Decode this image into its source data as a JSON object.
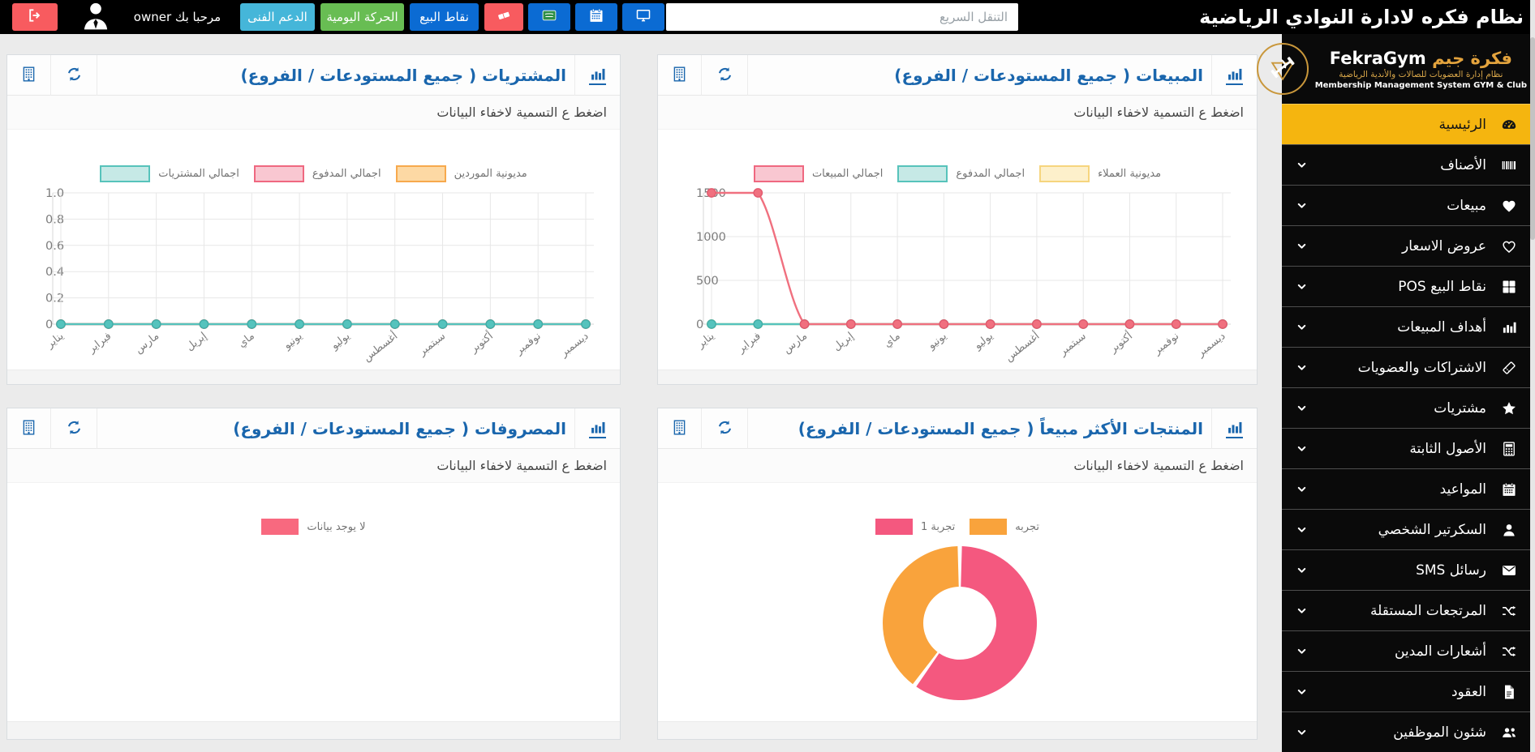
{
  "colors": {
    "topbar_bg": "#000000",
    "sidebar_bg": "#0a0a0a",
    "active_yellow": "#f5b50f",
    "brand_gold": "#e3a33d",
    "title_blue": "#1a66ad",
    "btn_blue": "#0b6bd3",
    "btn_green": "#68bd53",
    "btn_lightblue": "#45b6d9",
    "btn_red": "#f85b5f",
    "line_pink": "#f0707f",
    "line_teal": "#55c3bd",
    "donut_pink": "#f4587f",
    "donut_orange": "#f9a33c",
    "no_data_pink": "#f8697f"
  },
  "topbar": {
    "app_title": "نظام فكره لادارة النوادي الرياضية",
    "search_placeholder": "التنقل السريع",
    "welcome": "مرحبا بك owner",
    "support_label": "الدعم الفنى",
    "daily_label": "الحركة اليومية",
    "pos_label": "نقاط البيع"
  },
  "sidebar": {
    "brand_ar": "فكرة جيم",
    "brand_en": "FekraGym",
    "brand_sub_ar": "نظام إدارة العضويات للصالات والأندية الرياضية",
    "brand_sub_en": "Membership Management System GYM & Club",
    "items": [
      {
        "label": "الرئيسية",
        "icon": "dashboard",
        "active": true
      },
      {
        "label": "الأصناف",
        "icon": "barcode"
      },
      {
        "label": "مبيعات",
        "icon": "heart"
      },
      {
        "label": "عروض الاسعار",
        "icon": "heart-o"
      },
      {
        "label": "نقاط البيع POS",
        "icon": "grid"
      },
      {
        "label": "أهداف المبيعات",
        "icon": "barchart"
      },
      {
        "label": "الاشتراكات والعضويات",
        "icon": "ticket"
      },
      {
        "label": "مشتريات",
        "icon": "star"
      },
      {
        "label": "الأصول الثابتة",
        "icon": "calculator"
      },
      {
        "label": "المواعيد",
        "icon": "calendar"
      },
      {
        "label": "السكرتير الشخصي",
        "icon": "user"
      },
      {
        "label": "رسائل SMS",
        "icon": "envelope"
      },
      {
        "label": "المرتجعات المستقلة",
        "icon": "shuffle"
      },
      {
        "label": "أشعارات المدين",
        "icon": "shuffle"
      },
      {
        "label": "العقود",
        "icon": "file"
      },
      {
        "label": "شئون الموظفين",
        "icon": "users"
      }
    ]
  },
  "panels": [
    {
      "title": "المشتريات ( جميع المستودعات / الفروع)",
      "subtitle": "اضغط ع التسمية لاخفاء البيانات",
      "chart": 1
    },
    {
      "title": "المبيعات ( جميع المستودعات / الفروع)",
      "subtitle": "اضغط ع التسمية لاخفاء البيانات",
      "chart": 0
    },
    {
      "title": "المصروفات ( جميع المستودعات / الفروع)",
      "subtitle": "اضغط ع التسمية لاخفاء البيانات",
      "chart": 2
    },
    {
      "title": "المنتجات الأكثر مبيعاً ( جميع المستودعات / الفروع)",
      "subtitle": "اضغط ع التسمية لاخفاء البيانات",
      "chart": 3
    }
  ],
  "chart_data": [
    {
      "type": "line",
      "title": "المبيعات ( جميع المستودعات / الفروع)",
      "categories": [
        "يناير",
        "فبراير",
        "مارس",
        "إبريل",
        "ماي",
        "يونيو",
        "يوليو",
        "أغسطس",
        "سبتمبر",
        "أكتوبر",
        "نوفمبر",
        "ديسمبر"
      ],
      "ylim": [
        0,
        1500
      ],
      "ytick_labels": [
        "0",
        "500",
        "1000",
        "1500"
      ],
      "grid": true,
      "legend_position": "top",
      "series": [
        {
          "name": "مديونية العملاء",
          "values": [
            0,
            0,
            0,
            0,
            0,
            0,
            0,
            0,
            0,
            0,
            0,
            0
          ],
          "line": "#f6d57e",
          "dot": "#f6d57e",
          "dot_stroke": "#edc45f"
        },
        {
          "name": "اجمالي المدفوع",
          "values": [
            0,
            0,
            0,
            0,
            0,
            0,
            0,
            0,
            0,
            0,
            0,
            0
          ],
          "line": "#55c3bd",
          "dot": "#55c3bd",
          "dot_stroke": "#41aea8"
        },
        {
          "name": "اجمالي المبيعات",
          "values": [
            1500,
            1500,
            0,
            0,
            0,
            0,
            0,
            0,
            0,
            0,
            0,
            0
          ],
          "line": "#f0707f",
          "dot": "#f0707f",
          "dot_stroke": "#e25a6e"
        }
      ],
      "legend": [
        {
          "label": "اجمالي المبيعات",
          "fill": "#f9c7d1",
          "border": "#ef6880"
        },
        {
          "label": "اجمالي المدفوع",
          "fill": "#c6e9e6",
          "border": "#57c3bb"
        },
        {
          "label": "مديونية العملاء",
          "fill": "#fdf0cb",
          "border": "#f6d57e"
        }
      ]
    },
    {
      "type": "line",
      "title": "المشتريات ( جميع المستودعات / الفروع)",
      "categories": [
        "يناير",
        "فبراير",
        "مارس",
        "إبريل",
        "ماي",
        "يونيو",
        "يوليو",
        "أغسطس",
        "سبتمبر",
        "أكتوبر",
        "نوفمبر",
        "ديسمبر"
      ],
      "ylim": [
        0,
        1
      ],
      "ytick_labels": [
        "0",
        "0.2",
        "0.4",
        "0.6",
        "0.8",
        "1.0"
      ],
      "grid": true,
      "legend_position": "top",
      "series": [
        {
          "name": "مديونية الموردين",
          "values": [
            0,
            0,
            0,
            0,
            0,
            0,
            0,
            0,
            0,
            0,
            0,
            0
          ],
          "line": "#f7a94d",
          "dot": "#f7a94d",
          "dot_stroke": "#e79539"
        },
        {
          "name": "اجمالي المدفوع",
          "values": [
            0,
            0,
            0,
            0,
            0,
            0,
            0,
            0,
            0,
            0,
            0,
            0
          ],
          "line": "#f0707f",
          "dot": "#f0707f",
          "dot_stroke": "#e25a6e"
        },
        {
          "name": "اجمالي المشتريات",
          "values": [
            0,
            0,
            0,
            0,
            0,
            0,
            0,
            0,
            0,
            0,
            0,
            0
          ],
          "line": "#55c3bd",
          "dot": "#55c3bd",
          "dot_stroke": "#41aea8"
        }
      ],
      "legend": [
        {
          "label": "اجمالي المشتريات",
          "fill": "#c6e9e6",
          "border": "#57c3bb"
        },
        {
          "label": "اجمالي المدفوع",
          "fill": "#f9c7d1",
          "border": "#ef6880"
        },
        {
          "label": "مديونية الموردين",
          "fill": "#fdd9a4",
          "border": "#f7a94d"
        }
      ]
    },
    {
      "type": "empty",
      "title": "المصروفات ( جميع المستودعات / الفروع)",
      "legend": [
        {
          "label": "لا يوجد بيانات",
          "fill": "#f8697f"
        }
      ]
    },
    {
      "type": "doughnut",
      "title": "المنتجات الأكثر مبيعاً ( جميع المستودعات / الفروع)",
      "labels": [
        "تجربة 1",
        "تجربه"
      ],
      "values": [
        60,
        40
      ],
      "colors": [
        "#f4587f",
        "#f9a33c"
      ],
      "legend": [
        {
          "label": "تجربة 1",
          "fill": "#f4587f"
        },
        {
          "label": "تجربه",
          "fill": "#f9a33c"
        }
      ]
    }
  ]
}
